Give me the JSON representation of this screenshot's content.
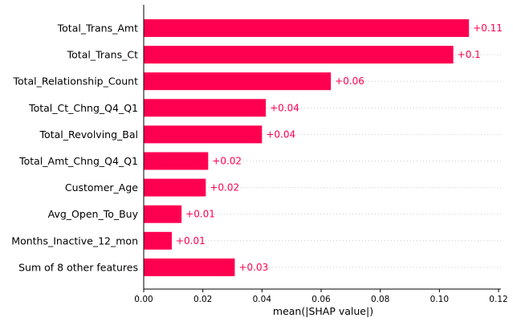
{
  "chart_data": {
    "type": "bar",
    "orientation": "horizontal",
    "categories": [
      "Total_Trans_Amt",
      "Total_Trans_Ct",
      "Total_Relationship_Count",
      "Total_Ct_Chng_Q4_Q1",
      "Total_Revolving_Bal",
      "Total_Amt_Chng_Q4_Q1",
      "Customer_Age",
      "Avg_Open_To_Buy",
      "Months_Inactive_12_mon",
      "Sum of 8 other features"
    ],
    "values": [
      0.11,
      0.1047,
      0.0633,
      0.0413,
      0.04,
      0.0218,
      0.021,
      0.0128,
      0.0095,
      0.0308
    ],
    "value_labels": [
      "+0.11",
      "+0.1",
      "+0.06",
      "+0.04",
      "+0.04",
      "+0.02",
      "+0.02",
      "+0.01",
      "+0.01",
      "+0.03"
    ],
    "xlabel": "mean(|SHAP value|)",
    "ylabel": "",
    "title": "",
    "xlim": [
      0,
      0.12
    ],
    "x_ticks": [
      "0.00",
      "0.02",
      "0.04",
      "0.06",
      "0.08",
      "0.10",
      "0.12"
    ],
    "grid": "horizontal dotted row guides",
    "colors": {
      "bar": "#ff0051",
      "value_label": "#ff0051",
      "axis": "#000000",
      "guide": "#cccccc"
    }
  }
}
